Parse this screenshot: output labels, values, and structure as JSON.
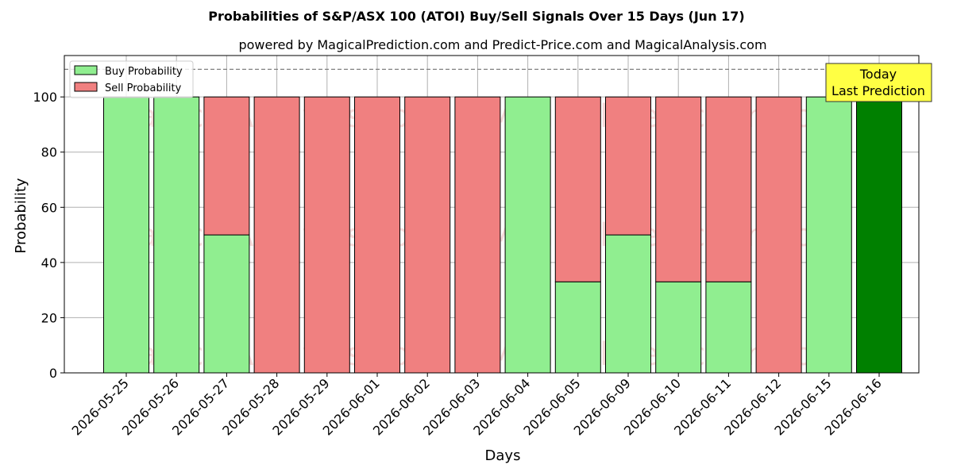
{
  "chart_data": {
    "type": "bar",
    "stacked": true,
    "title": "Probabilities of S&P/ASX 100 (ATOI) Buy/Sell Signals Over 15 Days (Jun 17)",
    "subtitle": "powered by MagicalPrediction.com and Predict-Price.com and MagicalAnalysis.com",
    "xlabel": "Days",
    "ylabel": "Probability",
    "ylim": [
      0,
      115
    ],
    "yticks": [
      0,
      20,
      40,
      60,
      80,
      100
    ],
    "grid": true,
    "legend_position": "top-left",
    "categories": [
      "2026-05-25",
      "2026-05-26",
      "2026-05-27",
      "2026-05-28",
      "2026-05-29",
      "2026-06-01",
      "2026-06-02",
      "2026-06-03",
      "2026-06-04",
      "2026-06-05",
      "2026-06-09",
      "2026-06-10",
      "2026-06-11",
      "2026-06-12",
      "2026-06-15",
      "2026-06-16"
    ],
    "series": [
      {
        "name": "Buy Probability",
        "color": "#90ee90",
        "values": [
          100,
          100,
          50,
          0,
          0,
          0,
          0,
          0,
          100,
          33,
          50,
          33,
          33,
          0,
          100,
          100
        ]
      },
      {
        "name": "Sell Probability",
        "color": "#f08080",
        "values": [
          0,
          0,
          50,
          100,
          100,
          100,
          100,
          100,
          0,
          67,
          50,
          67,
          67,
          100,
          0,
          0
        ]
      }
    ],
    "highlight": {
      "index": 15,
      "color": "#008000",
      "label_lines": [
        "Today",
        "Last Prediction"
      ],
      "box_color": "#ffff44"
    },
    "reference_line": {
      "y": 110,
      "style": "dashed",
      "color": "#808080"
    },
    "watermarks": [
      "MagicalAnalysis.com",
      "MagicalPrediction.com"
    ]
  }
}
